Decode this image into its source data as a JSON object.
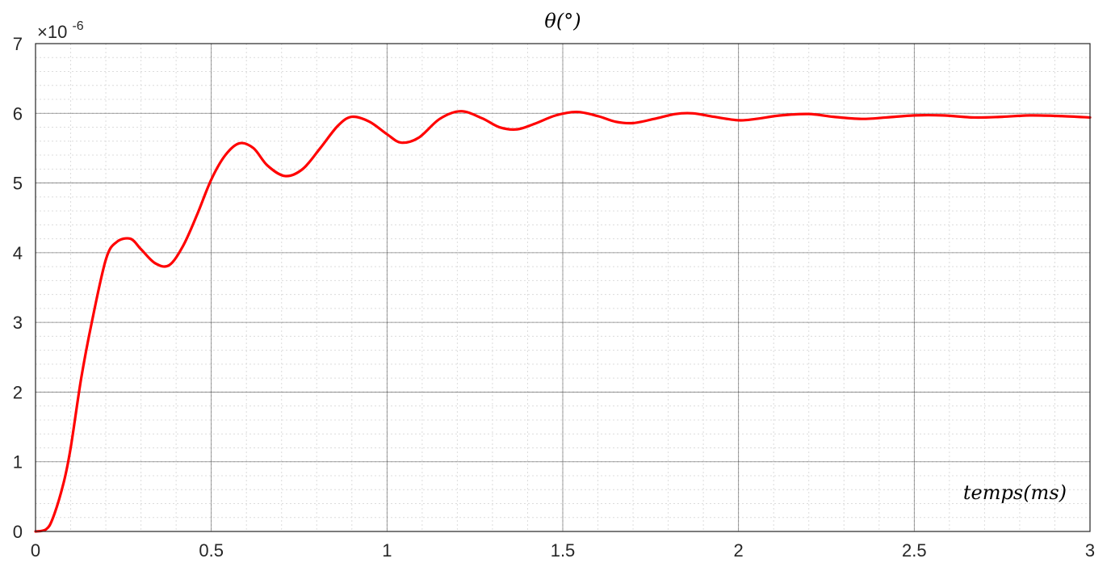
{
  "chart_data": {
    "type": "line",
    "title": "θ(°)",
    "xlabel": "temps(ms)",
    "ylabel": "",
    "xlim": [
      0,
      3
    ],
    "ylim": [
      0,
      7e-06
    ],
    "y_multiplier": {
      "base": "×10",
      "exponent": "-6"
    },
    "x_ticks": [
      "0",
      "0.5",
      "1",
      "1.5",
      "2",
      "2.5",
      "3"
    ],
    "y_ticks": [
      "0",
      "1",
      "2",
      "3",
      "4",
      "5",
      "6",
      "7"
    ],
    "grid": true,
    "minor_grid": true,
    "series": [
      {
        "color": "#ff0000",
        "x": [
          0,
          0.03,
          0.05,
          0.08,
          0.1,
          0.13,
          0.16,
          0.2,
          0.23,
          0.27,
          0.3,
          0.34,
          0.38,
          0.42,
          0.46,
          0.5,
          0.54,
          0.58,
          0.62,
          0.66,
          0.71,
          0.76,
          0.81,
          0.86,
          0.9,
          0.95,
          1.0,
          1.04,
          1.09,
          1.15,
          1.21,
          1.27,
          1.32,
          1.37,
          1.42,
          1.48,
          1.54,
          1.6,
          1.65,
          1.7,
          1.76,
          1.82,
          1.87,
          1.93,
          2.0,
          2.05,
          2.12,
          2.2,
          2.27,
          2.35,
          2.42,
          2.5,
          2.58,
          2.67,
          2.75,
          2.83,
          2.92,
          3.0
        ],
        "values": [
          0,
          3e-08,
          2e-07,
          7e-07,
          1.2e-06,
          2.2e-06,
          3e-06,
          3.9e-06,
          4.15e-06,
          4.2e-06,
          4.05e-06,
          3.85e-06,
          3.82e-06,
          4.1e-06,
          4.55e-06,
          5.05e-06,
          5.4e-06,
          5.57e-06,
          5.5e-06,
          5.25e-06,
          5.1e-06,
          5.2e-06,
          5.5e-06,
          5.82e-06,
          5.95e-06,
          5.88e-06,
          5.7e-06,
          5.58e-06,
          5.65e-06,
          5.92e-06,
          6.03e-06,
          5.93e-06,
          5.8e-06,
          5.77e-06,
          5.85e-06,
          5.97e-06,
          6.02e-06,
          5.96e-06,
          5.88e-06,
          5.86e-06,
          5.92e-06,
          5.99e-06,
          6e-06,
          5.95e-06,
          5.9e-06,
          5.92e-06,
          5.97e-06,
          5.99e-06,
          5.95e-06,
          5.92e-06,
          5.94e-06,
          5.97e-06,
          5.97e-06,
          5.94e-06,
          5.95e-06,
          5.97e-06,
          5.96e-06,
          5.94e-06
        ]
      }
    ]
  }
}
